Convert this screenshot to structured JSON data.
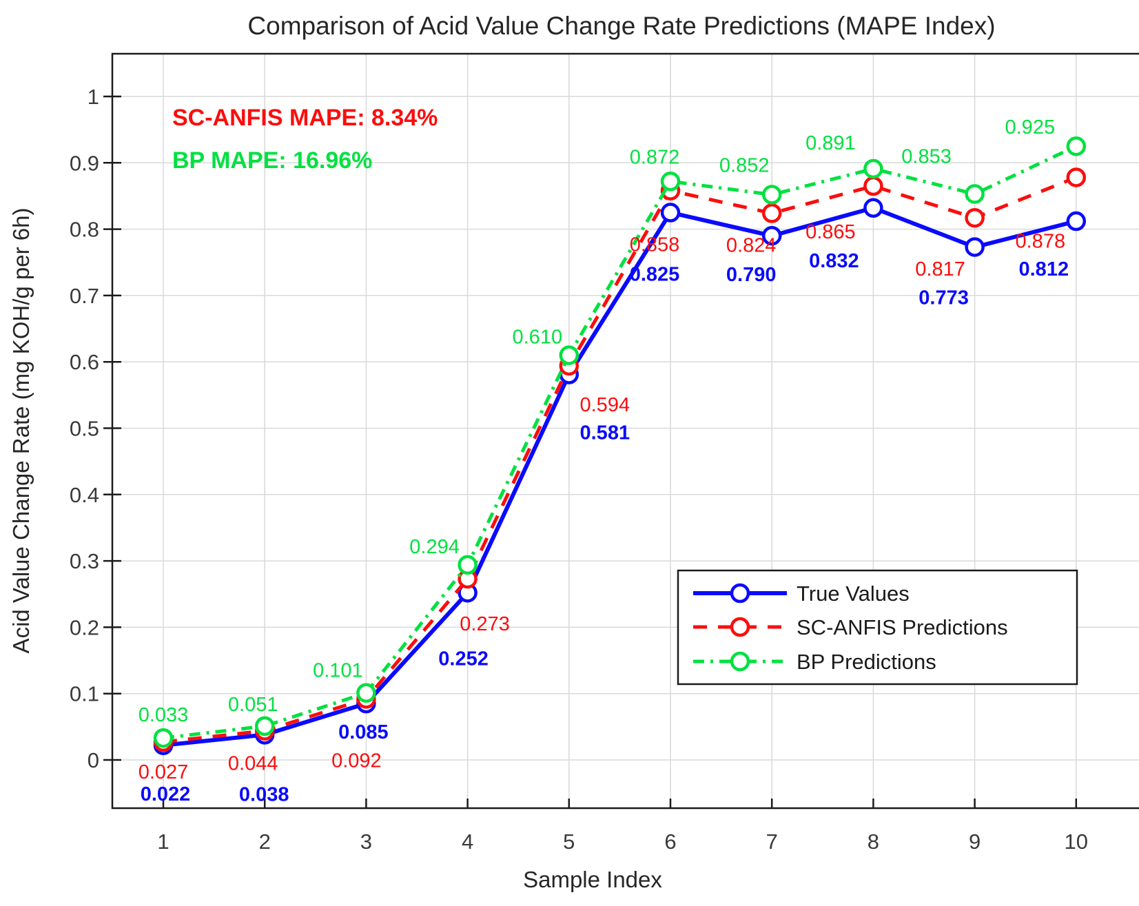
{
  "chart_data": {
    "type": "line",
    "title": "Comparison of Acid Value Change Rate Predictions (MAPE Index)",
    "xlabel": "Sample Index",
    "ylabel": "Acid Value Change Rate (mg KOH/g per 6h)",
    "x": [
      1,
      2,
      3,
      4,
      5,
      6,
      7,
      8,
      9,
      10
    ],
    "x_tick_labels": [
      "1",
      "2",
      "3",
      "4",
      "5",
      "6",
      "7",
      "8",
      "9",
      "10"
    ],
    "y_tick_labels": [
      "0",
      "0.1",
      "0.2",
      "0.3",
      "0.4",
      "0.5",
      "0.6",
      "0.7",
      "0.8",
      "0.9",
      "1"
    ],
    "y_tick_values": [
      0,
      0.1,
      0.2,
      0.3,
      0.4,
      0.5,
      0.6,
      0.7,
      0.8,
      0.9,
      1
    ],
    "xlim": [
      0.497,
      10.62
    ],
    "ylim": [
      -0.073,
      1.064
    ],
    "grid": true,
    "legend_position": "inside-lower-right",
    "series": [
      {
        "name": "True Values",
        "color": "#0a0aff",
        "line_style": "solid",
        "marker": "circle",
        "values": [
          0.022,
          0.038,
          0.085,
          0.252,
          0.581,
          0.825,
          0.79,
          0.832,
          0.773,
          0.812
        ],
        "label_decimals": 3,
        "label_bold": true
      },
      {
        "name": "SC-ANFIS Predictions",
        "color": "#fc0d0d",
        "line_style": "dashed",
        "marker": "circle",
        "values": [
          0.027,
          0.044,
          0.092,
          0.273,
          0.594,
          0.858,
          0.824,
          0.865,
          0.817,
          0.878
        ],
        "label_decimals": 3,
        "label_bold": false
      },
      {
        "name": "BP Predictions",
        "color": "#00e140",
        "line_style": "dashdot",
        "marker": "circle",
        "values": [
          0.033,
          0.051,
          0.101,
          0.294,
          0.61,
          0.872,
          0.852,
          0.891,
          0.853,
          0.925
        ],
        "label_decimals": 3,
        "label_bold": false
      }
    ],
    "annotations": [
      {
        "text": "SC-ANFIS MAPE: 8.34%",
        "color": "#fc0d0d"
      },
      {
        "text": "BP MAPE: 16.96%",
        "color": "#00e140"
      }
    ],
    "colors": {
      "grid": "#d9d9d9",
      "axis": "#1a1a1a",
      "tick_text": "#3a3a3a",
      "title_text": "#262626",
      "legend_border": "#1a1a1a",
      "legend_background": "#ffffff"
    }
  }
}
